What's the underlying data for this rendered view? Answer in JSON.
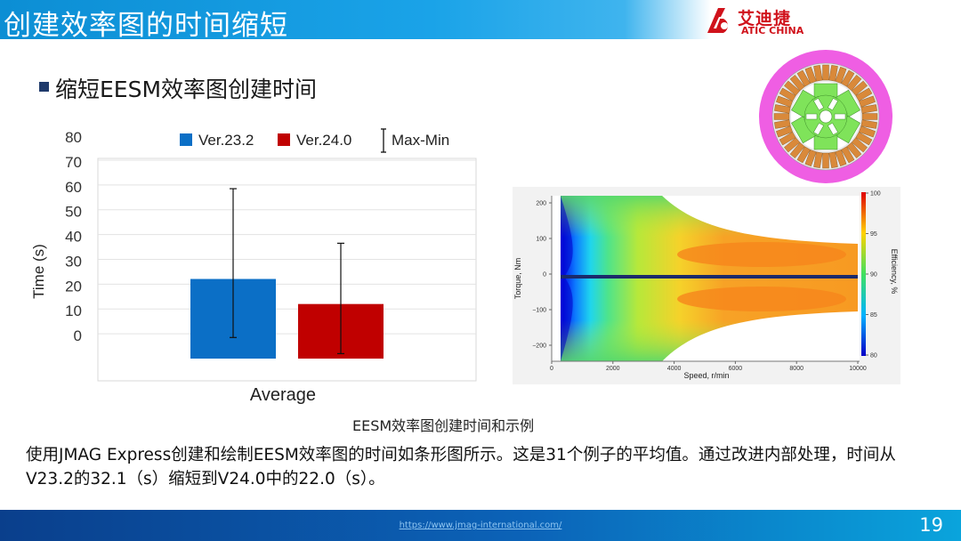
{
  "header": {
    "title": "创建效率图的时间缩短"
  },
  "logo": {
    "cn": "艾迪捷",
    "en": "ATIC CHINA",
    "colors": {
      "brand_red": "#d0121b"
    }
  },
  "bullet": {
    "text": "缩短EESM效率图创建时间"
  },
  "chart_data": {
    "type": "bar",
    "categories": [
      "Average"
    ],
    "series": [
      {
        "name": "Ver.23.2",
        "values": [
          32.1
        ],
        "error_min": [
          8.5
        ],
        "error_max": [
          68.5
        ],
        "color": "#0b6fc6"
      },
      {
        "name": "Ver.24.0",
        "values": [
          22.0
        ],
        "error_min": [
          2.0
        ],
        "error_max": [
          46.5
        ],
        "color": "#c00000"
      }
    ],
    "error_bar_legend": "Max-Min",
    "ylabel": "Time (s)",
    "xlabel": "",
    "ylim": [
      0,
      80
    ],
    "yticks": [
      "0",
      "10",
      "20",
      "30",
      "40",
      "50",
      "60",
      "70",
      "80"
    ],
    "grid": true,
    "legend_position": "top"
  },
  "effmap": {
    "xlabel": "Speed, r/min",
    "ylabel": "Torque, Nm",
    "cbar_label": "Efficiency, %",
    "xticks": [
      "0",
      "2000",
      "4000",
      "6000",
      "8000",
      "10000"
    ],
    "yticks": [
      "200",
      "100",
      "0",
      "−100",
      "−200"
    ],
    "cticks": [
      "100",
      "95",
      "90",
      "85",
      "80"
    ]
  },
  "caption": "EESM效率图创建时间和示例",
  "paragraph": "使用JMAG Express创建和绘制EESM效率图的时间如条形图所示。这是31个例子的平均值。通过改进内部处理，时间从V23.2的32.1（s）缩短到V24.0中的22.0（s）。",
  "footer": {
    "url": "https://www.jmag-international.com/",
    "page": "19"
  }
}
